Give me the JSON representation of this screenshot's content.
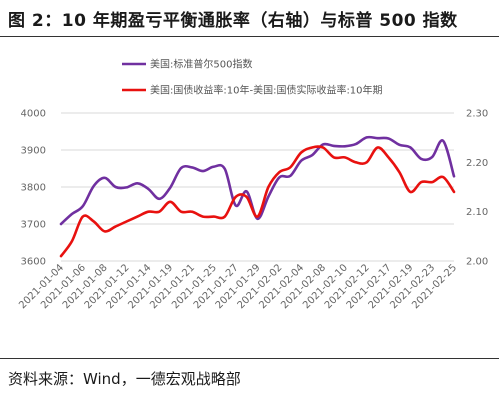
{
  "title": "图 2：10 年期盈亏平衡通胀率（右轴）与标普 500 指数",
  "source": "资料来源：Wind，一德宏观战略部",
  "colors": {
    "spx": "#7030A0",
    "bei": "#E8110F"
  },
  "chart_data": {
    "type": "line",
    "categories": [
      "2021-01-04",
      "2021-01-06",
      "2021-01-08",
      "2021-01-12",
      "2021-01-14",
      "2021-01-19",
      "2021-01-21",
      "2021-01-25",
      "2021-01-27",
      "2021-01-29",
      "2021-02-02",
      "2021-02-04",
      "2021-02-08",
      "2021-02-10",
      "2021-02-12",
      "2021-02-17",
      "2021-02-19",
      "2021-02-23",
      "2021-02-25"
    ],
    "x": [
      "2021-01-04",
      "2021-01-05",
      "2021-01-06",
      "2021-01-07",
      "2021-01-08",
      "2021-01-11",
      "2021-01-12",
      "2021-01-13",
      "2021-01-14",
      "2021-01-15",
      "2021-01-19",
      "2021-01-20",
      "2021-01-21",
      "2021-01-22",
      "2021-01-25",
      "2021-01-26",
      "2021-01-27",
      "2021-01-28",
      "2021-01-29",
      "2021-02-01",
      "2021-02-02",
      "2021-02-03",
      "2021-02-04",
      "2021-02-05",
      "2021-02-08",
      "2021-02-09",
      "2021-02-10",
      "2021-02-11",
      "2021-02-12",
      "2021-02-16",
      "2021-02-17",
      "2021-02-18",
      "2021-02-19",
      "2021-02-22",
      "2021-02-23",
      "2021-02-24",
      "2021-02-25"
    ],
    "series": [
      {
        "name": "美国:标准普尔500指数",
        "axis": "left",
        "values": [
          3700,
          3727,
          3748,
          3803,
          3825,
          3800,
          3799,
          3810,
          3795,
          3768,
          3798,
          3851,
          3853,
          3843,
          3855,
          3849,
          3750,
          3788,
          3714,
          3774,
          3826,
          3830,
          3871,
          3886,
          3915,
          3911,
          3910,
          3916,
          3934,
          3932,
          3931,
          3914,
          3907,
          3876,
          3881,
          3925,
          3829
        ]
      },
      {
        "name": "美国:国债收益率:10年-美国:国债实际收益率:10年期",
        "axis": "right",
        "values": [
          2.01,
          2.04,
          2.09,
          2.08,
          2.06,
          2.07,
          2.08,
          2.09,
          2.1,
          2.1,
          2.12,
          2.1,
          2.1,
          2.09,
          2.09,
          2.09,
          2.13,
          2.13,
          2.09,
          2.15,
          2.18,
          2.19,
          2.22,
          2.23,
          2.23,
          2.21,
          2.21,
          2.2,
          2.2,
          2.23,
          2.21,
          2.18,
          2.14,
          2.16,
          2.16,
          2.17,
          2.14
        ]
      }
    ],
    "y_left": {
      "min": 3600,
      "max": 4000,
      "ticks": [
        3600,
        3700,
        3800,
        3900,
        4000
      ]
    },
    "y_right": {
      "min": 2.0,
      "max": 2.3,
      "ticks": [
        "2.00",
        "2.10",
        "2.20",
        "2.30"
      ]
    },
    "grid": true,
    "legend": "top-left"
  }
}
